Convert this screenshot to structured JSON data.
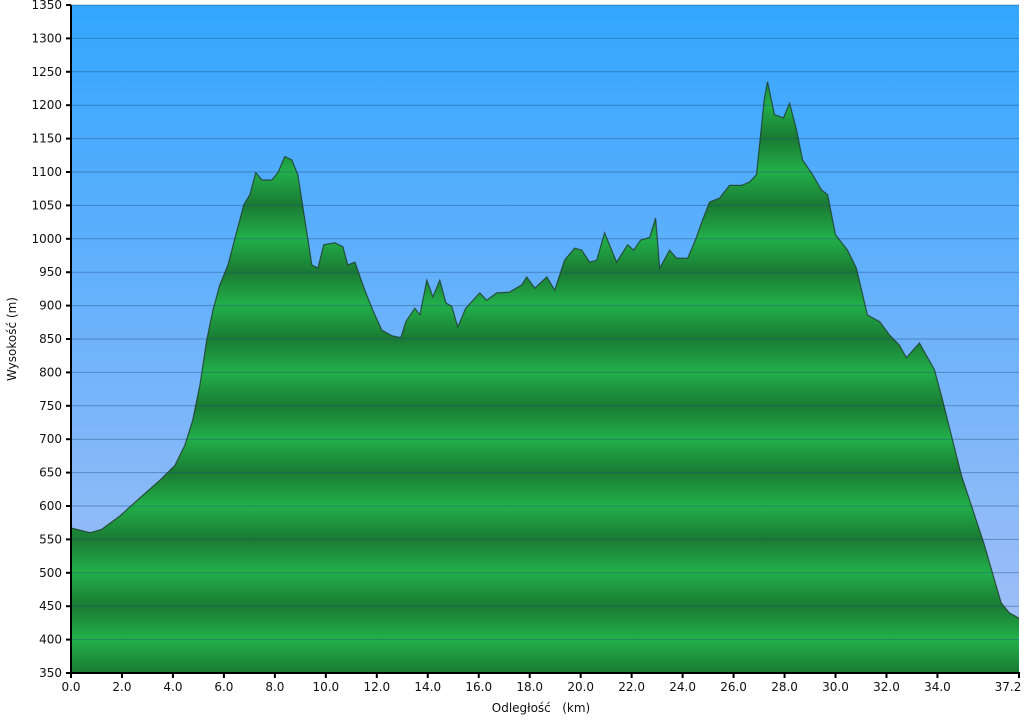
{
  "chart_data": {
    "type": "area",
    "title": "",
    "xlabel": "Odległość   (km)",
    "ylabel": "Wysokość (m)",
    "xlim": [
      0,
      37.2
    ],
    "ylim": [
      350,
      1350
    ],
    "grid": true,
    "x_ticks": [
      "0.0",
      "2.0",
      "4.0",
      "6.0",
      "8.0",
      "10.0",
      "12.0",
      "14.0",
      "16.0",
      "18.0",
      "20.0",
      "22.0",
      "24.0",
      "26.0",
      "28.0",
      "30.0",
      "32.0",
      "34.0",
      "37.2"
    ],
    "y_ticks": [
      "350",
      "400",
      "450",
      "500",
      "550",
      "600",
      "650",
      "700",
      "750",
      "800",
      "850",
      "900",
      "950",
      "1000",
      "1050",
      "1100",
      "1150",
      "1200",
      "1250",
      "1300",
      "1350"
    ],
    "colors": {
      "sky_top": "#33a6ff",
      "sky_bottom": "#a8c0f6",
      "fill_light": "#22b04a",
      "fill_dark": "#1a7a33",
      "outline": "#1f3a28"
    },
    "x": [
      0,
      0.75,
      1.2,
      1.92,
      2.7,
      3.5,
      4.08,
      4.47,
      4.78,
      5.06,
      5.33,
      5.57,
      5.84,
      6.16,
      6.47,
      6.78,
      7.02,
      7.25,
      7.49,
      7.88,
      8.12,
      8.39,
      8.67,
      8.9,
      9.18,
      9.45,
      9.69,
      9.92,
      10.35,
      10.67,
      10.86,
      11.14,
      11.53,
      11.88,
      12.2,
      12.59,
      12.94,
      13.14,
      13.49,
      13.69,
      13.96,
      14.2,
      14.47,
      14.71,
      14.94,
      15.18,
      15.49,
      16.04,
      16.31,
      16.71,
      17.2,
      17.69,
      17.88,
      18.2,
      18.67,
      18.98,
      19.37,
      19.76,
      20.04,
      20.35,
      20.63,
      20.94,
      21.41,
      21.84,
      22.08,
      22.35,
      22.71,
      22.94,
      23.1,
      23.49,
      23.76,
      24.2,
      24.5,
      24.78,
      25.06,
      25.45,
      25.84,
      26.31,
      26.63,
      26.9,
      27.2,
      27.33,
      27.6,
      27.96,
      28.2,
      28.47,
      28.71,
      29.1,
      29.45,
      29.69,
      30.0,
      30.47,
      30.82,
      31.25,
      31.73,
      32.12,
      32.5,
      32.78,
      33.29,
      33.88,
      34.2,
      34.59,
      34.94,
      35.45,
      35.84,
      36.24,
      36.5,
      36.82,
      37.2
    ],
    "y": [
      567,
      560,
      565,
      585,
      612,
      639,
      661,
      691,
      729,
      781,
      849,
      893,
      931,
      961,
      1006,
      1051,
      1066,
      1099,
      1088,
      1088,
      1099,
      1123,
      1118,
      1096,
      1028,
      961,
      956,
      991,
      994,
      988,
      961,
      965,
      923,
      890,
      863,
      855,
      852,
      876,
      896,
      886,
      938,
      913,
      938,
      904,
      899,
      868,
      896,
      919,
      908,
      919,
      920,
      931,
      943,
      926,
      943,
      923,
      968,
      986,
      983,
      965,
      968,
      1009,
      965,
      991,
      983,
      998,
      1002,
      1031,
      956,
      983,
      971,
      971,
      998,
      1028,
      1055,
      1061,
      1080,
      1080,
      1085,
      1096,
      1208,
      1235,
      1186,
      1181,
      1203,
      1163,
      1118,
      1096,
      1073,
      1066,
      1006,
      983,
      956,
      886,
      876,
      856,
      841,
      822,
      844,
      804,
      759,
      699,
      646,
      587,
      542,
      489,
      455,
      440,
      432
    ]
  }
}
